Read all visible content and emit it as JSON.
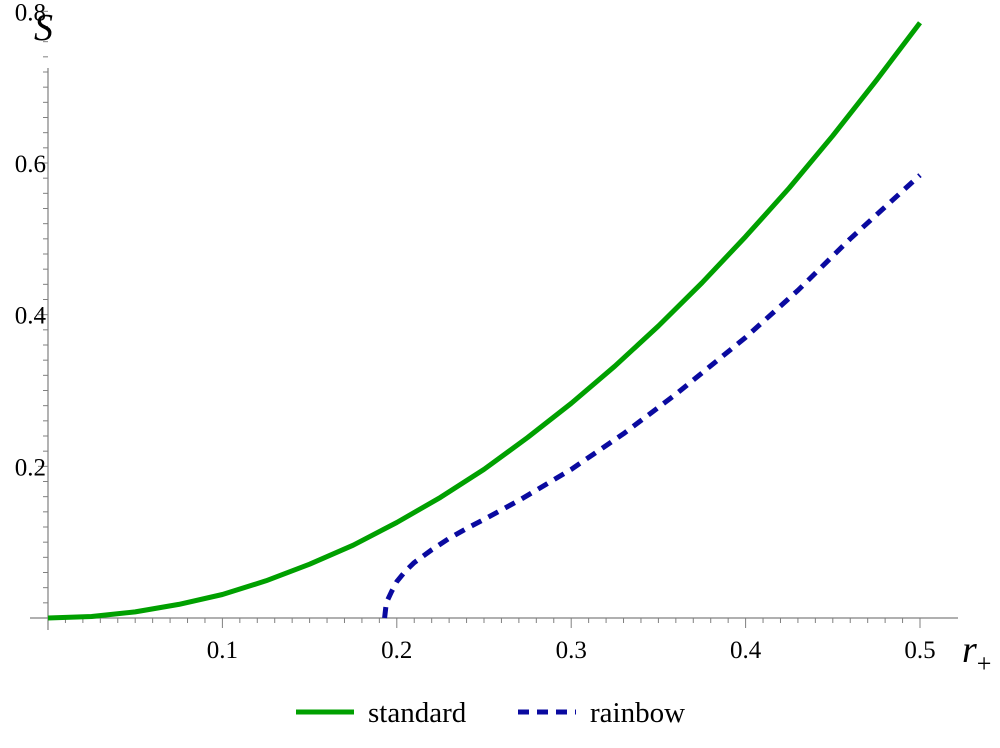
{
  "chart_data": {
    "type": "line",
    "title": "",
    "xlabel": "r",
    "xlabel_subscript": "+",
    "ylabel": "S",
    "xlim": [
      0,
      0.5
    ],
    "ylim": [
      0,
      0.84
    ],
    "xticks": [
      0.1,
      0.2,
      0.3,
      0.4,
      0.5
    ],
    "xtick_labels": [
      "0.1",
      "0.2",
      "0.3",
      "0.4",
      "0.5"
    ],
    "yticks": [
      0.2,
      0.4,
      0.6,
      0.8
    ],
    "ytick_labels": [
      "0.2",
      "0.4",
      "0.6",
      "0.8"
    ],
    "grid": false,
    "legend_position": "bottom-center",
    "series": [
      {
        "name": "standard",
        "color": "#00a000",
        "style": "solid",
        "x": [
          0.0,
          0.025,
          0.05,
          0.075,
          0.1,
          0.125,
          0.15,
          0.175,
          0.2,
          0.225,
          0.25,
          0.275,
          0.3,
          0.325,
          0.35,
          0.375,
          0.4,
          0.425,
          0.45,
          0.475,
          0.5
        ],
        "y": [
          0.0,
          0.002,
          0.008,
          0.018,
          0.031,
          0.049,
          0.071,
          0.096,
          0.126,
          0.159,
          0.196,
          0.238,
          0.283,
          0.332,
          0.385,
          0.442,
          0.503,
          0.567,
          0.636,
          0.709,
          0.785
        ]
      },
      {
        "name": "rainbow",
        "color": "#0a0aa0",
        "style": "dashed",
        "x": [
          0.193,
          0.194,
          0.197,
          0.2,
          0.205,
          0.21,
          0.22,
          0.23,
          0.24,
          0.25,
          0.27,
          0.3,
          0.33,
          0.36,
          0.4,
          0.43,
          0.46,
          0.5
        ],
        "y": [
          0.0,
          0.02,
          0.035,
          0.048,
          0.062,
          0.073,
          0.09,
          0.105,
          0.118,
          0.13,
          0.155,
          0.196,
          0.243,
          0.295,
          0.37,
          0.432,
          0.5,
          0.584
        ]
      }
    ]
  }
}
